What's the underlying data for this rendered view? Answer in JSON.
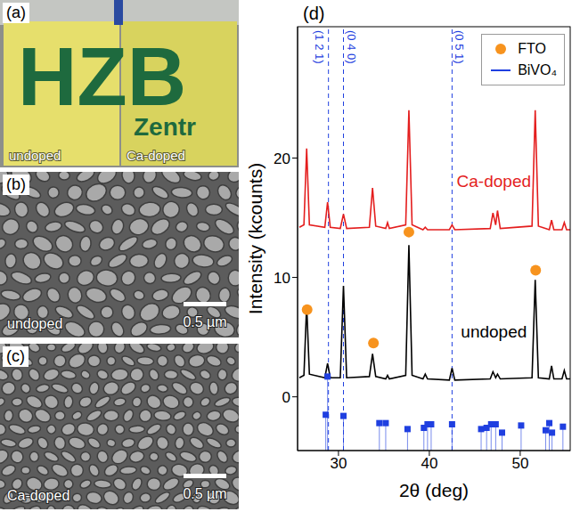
{
  "panels": [
    {
      "letter": "(a)",
      "photo_text": [
        "HZB",
        "Zentr"
      ],
      "labels": [
        "undoped",
        "Ca-doped"
      ]
    },
    {
      "letter": "(b)",
      "label": "undoped",
      "scale_bar": "0.5 µm"
    },
    {
      "letter": "(c)",
      "label": "Ca-doped",
      "scale_bar": "0.5 µm"
    }
  ],
  "chart_data": {
    "panel": "(d)",
    "type": "line",
    "x_label": "2θ (deg)",
    "y_label": "Intensity (kcounts)",
    "xlim": [
      25.5,
      55.5
    ],
    "xticks": [
      30,
      40,
      50
    ],
    "ylim": [
      -4.5,
      31
    ],
    "yticks": [
      0,
      10,
      20
    ],
    "grid": false,
    "legend": "upper right",
    "reference_lines": [
      {
        "x": 28.9,
        "label": "(1 2 1)"
      },
      {
        "x": 30.55,
        "label": "(0 4 0)"
      },
      {
        "x": 42.5,
        "label": "(0 5 1)"
      }
    ],
    "series": [
      {
        "name": "Ca-doped",
        "type": "line",
        "color": "#e41e1e",
        "x": [
          25.7,
          26.2,
          26.5,
          26.8,
          28.5,
          28.8,
          29.1,
          30.2,
          30.55,
          30.9,
          33.4,
          33.75,
          34.1,
          35.2,
          35.4,
          35.6,
          37.4,
          37.75,
          38.1,
          39.3,
          39.55,
          39.8,
          42.2,
          42.5,
          42.8,
          46.7,
          47.0,
          47.3,
          47.5,
          47.8,
          51.3,
          51.65,
          52.0,
          53.2,
          53.45,
          53.7,
          54.6,
          54.85,
          55.1,
          55.5
        ],
        "values": [
          14.2,
          14.4,
          20.8,
          14.4,
          14.2,
          16.3,
          14.2,
          14.1,
          15.3,
          14.1,
          14.2,
          17.5,
          14.3,
          14.1,
          14.6,
          14.1,
          14.4,
          24.0,
          14.4,
          14.0,
          14.2,
          14.0,
          14.0,
          14.4,
          14.0,
          14.1,
          15.4,
          14.4,
          15.6,
          14.1,
          14.3,
          24.0,
          14.3,
          14.0,
          14.8,
          14.0,
          14.0,
          14.6,
          14.0,
          14.0
        ]
      },
      {
        "name": "undoped",
        "type": "line",
        "color": "#000000",
        "x": [
          25.7,
          26.2,
          26.5,
          26.8,
          28.5,
          28.8,
          29.1,
          30.2,
          30.55,
          30.9,
          33.4,
          33.75,
          34.1,
          35.2,
          35.4,
          35.6,
          37.4,
          37.75,
          38.1,
          39.3,
          39.55,
          39.8,
          42.2,
          42.5,
          42.8,
          46.7,
          47.0,
          47.3,
          47.5,
          47.8,
          51.3,
          51.65,
          52.0,
          53.2,
          53.45,
          53.7,
          54.6,
          54.85,
          55.1,
          55.5
        ],
        "values": [
          1.6,
          1.8,
          7.7,
          1.9,
          1.6,
          2.8,
          1.6,
          1.6,
          9.3,
          1.6,
          1.7,
          3.6,
          1.7,
          1.5,
          1.8,
          1.5,
          1.8,
          12.7,
          1.8,
          1.5,
          1.9,
          1.5,
          1.4,
          2.4,
          1.4,
          1.5,
          2.1,
          1.6,
          1.9,
          1.5,
          1.6,
          9.8,
          1.6,
          1.5,
          2.6,
          1.5,
          1.5,
          2.2,
          1.5,
          1.5
        ]
      },
      {
        "name": "FTO",
        "type": "scatter",
        "marker": "circle",
        "color": "#f7931e",
        "x": [
          26.55,
          33.85,
          37.75,
          51.7
        ],
        "values": [
          7.3,
          4.5,
          13.8,
          10.6
        ]
      },
      {
        "name": "BiVO₄",
        "type": "stem",
        "marker": "square",
        "color": "#1f3fe0",
        "x": [
          28.6,
          28.8,
          30.55,
          34.5,
          35.2,
          37.6,
          39.4,
          39.8,
          40.2,
          42.5,
          45.7,
          46.3,
          46.8,
          47.3,
          48.0,
          50.1,
          52.8,
          53.2,
          53.5,
          54.7
        ],
        "values": [
          -1.5,
          1.7,
          -1.6,
          -2.2,
          -2.2,
          -2.7,
          -2.6,
          -2.3,
          -2.3,
          -2.3,
          -2.7,
          -2.6,
          -2.3,
          -2.3,
          -3.0,
          -2.4,
          -2.8,
          -2.2,
          -3.0,
          -2.5
        ]
      }
    ]
  }
}
